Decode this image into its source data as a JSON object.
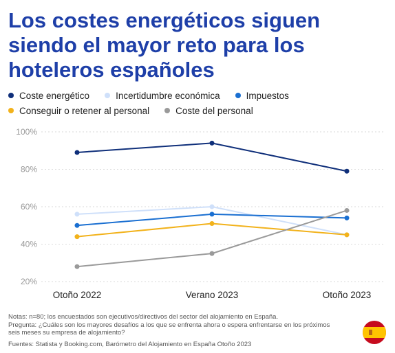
{
  "title": "Los costes energéticos siguen siendo el mayor reto para los hoteleros españoles",
  "legend": [
    {
      "label": "Coste energético",
      "color": "#0f2f7a"
    },
    {
      "label": "Incertidumbre económica",
      "color": "#cfe0fa"
    },
    {
      "label": "Impuestos",
      "color": "#1a6fd1"
    },
    {
      "label": "Conseguir o retener al personal",
      "color": "#f2b21b"
    },
    {
      "label": "Coste del personal",
      "color": "#9a9a9a"
    }
  ],
  "chart_data": {
    "type": "line",
    "x": [
      "Otoño 2022",
      "Verano 2023",
      "Otoño 2023"
    ],
    "yticks": [
      "20%",
      "40%",
      "60%",
      "80%",
      "100%"
    ],
    "ylim": [
      20,
      100
    ],
    "y_unit": "%",
    "grid": true,
    "legend_position": "top",
    "series": [
      {
        "name": "Coste energético",
        "color": "#0f2f7a",
        "values": [
          89,
          94,
          79
        ]
      },
      {
        "name": "Incertidumbre económica",
        "color": "#cfe0fa",
        "values": [
          56,
          60,
          45
        ]
      },
      {
        "name": "Impuestos",
        "color": "#1a6fd1",
        "values": [
          50,
          56,
          54
        ]
      },
      {
        "name": "Conseguir o retener al personal",
        "color": "#f2b21b",
        "values": [
          44,
          51,
          45
        ]
      },
      {
        "name": "Coste del personal",
        "color": "#9a9a9a",
        "values": [
          28,
          35,
          58
        ]
      }
    ]
  },
  "notes": {
    "line1": "Notas: n=80; los encuestados son ejecutivos/directivos del sector del alojamiento en España.",
    "line2": "Pregunta: ¿Cuáles son los mayores desafíos a los que se enfrenta ahora o espera enfrentarse en los próximos seis meses su empresa de alojamiento?",
    "source": "Fuentes: Statista y Booking.com, Barómetro del Alojamiento en España Otoño 2023"
  },
  "flag": {
    "icon": "spain-flag-icon",
    "colors": [
      "#c60b1e",
      "#ffc400"
    ]
  }
}
